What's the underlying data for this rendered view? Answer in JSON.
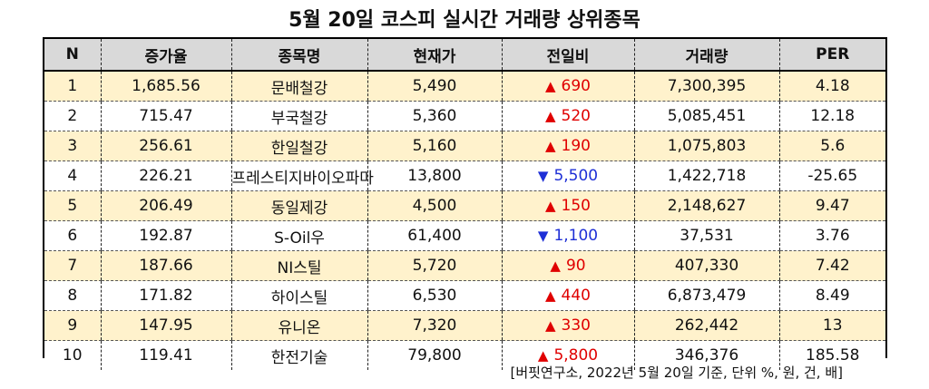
{
  "title": "5월 20일 코스피 실시간 거래량 상위종목",
  "columns": [
    "N",
    "증가율",
    "종목명",
    "현재가",
    "전일비",
    "거래량",
    "PER"
  ],
  "rows": [
    {
      "n": "1",
      "rate": "1,685.56",
      "name": "문배철강",
      "price": "5,490",
      "dir": "up",
      "arrow": "▲",
      "change": "690",
      "volume": "7,300,395",
      "per": "4.18"
    },
    {
      "n": "2",
      "rate": "715.47",
      "name": "부국철강",
      "price": "5,360",
      "dir": "up",
      "arrow": "▲",
      "change": "520",
      "volume": "5,085,451",
      "per": "12.18"
    },
    {
      "n": "3",
      "rate": "256.61",
      "name": "한일철강",
      "price": "5,160",
      "dir": "up",
      "arrow": "▲",
      "change": "190",
      "volume": "1,075,803",
      "per": "5.6"
    },
    {
      "n": "4",
      "rate": "226.21",
      "name": "프레스티지바이오파마",
      "price": "13,800",
      "dir": "down",
      "arrow": "▼",
      "change": "5,500",
      "volume": "1,422,718",
      "per": "-25.65"
    },
    {
      "n": "5",
      "rate": "206.49",
      "name": "동일제강",
      "price": "4,500",
      "dir": "up",
      "arrow": "▲",
      "change": "150",
      "volume": "2,148,627",
      "per": "9.47"
    },
    {
      "n": "6",
      "rate": "192.87",
      "name": "S-Oil우",
      "price": "61,400",
      "dir": "down",
      "arrow": "▼",
      "change": "1,100",
      "volume": "37,531",
      "per": "3.76"
    },
    {
      "n": "7",
      "rate": "187.66",
      "name": "NI스틸",
      "price": "5,720",
      "dir": "up",
      "arrow": "▲",
      "change": "90",
      "volume": "407,330",
      "per": "7.42"
    },
    {
      "n": "8",
      "rate": "171.82",
      "name": "하이스틸",
      "price": "6,530",
      "dir": "up",
      "arrow": "▲",
      "change": "440",
      "volume": "6,873,479",
      "per": "8.49"
    },
    {
      "n": "9",
      "rate": "147.95",
      "name": "유니온",
      "price": "7,320",
      "dir": "up",
      "arrow": "▲",
      "change": "330",
      "volume": "262,442",
      "per": "13"
    },
    {
      "n": "10",
      "rate": "119.41",
      "name": "한전기술",
      "price": "79,800",
      "dir": "up",
      "arrow": "▲",
      "change": "5,800",
      "volume": "346,376",
      "per": "185.58"
    }
  ],
  "footnote": "[버핏연구소, 2022년 5월 20일 기준, 단위 %, 원, 건, 배]",
  "colors": {
    "up": "#e00000",
    "down": "#1e2fd6",
    "odd_row": "#fff2cc",
    "header": "#d9d9d9"
  }
}
